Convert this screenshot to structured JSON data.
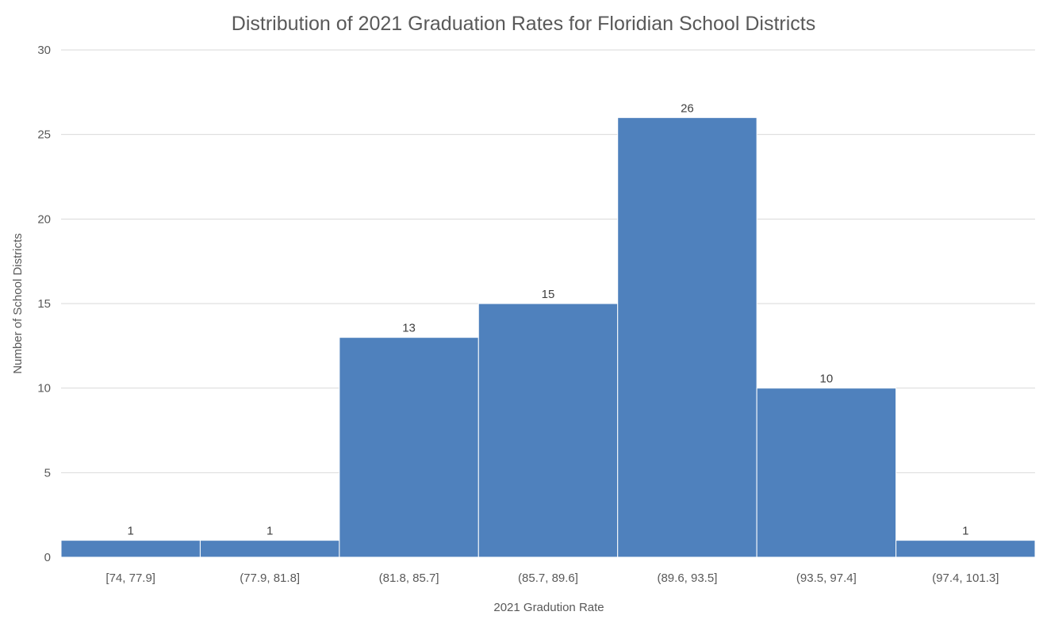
{
  "chart_data": {
    "type": "bar",
    "title": "Distribution of 2021 Graduation Rates for Floridian School Districts",
    "xlabel": "2021 Gradution Rate",
    "ylabel": "Number of School Districts",
    "categories": [
      "[74, 77.9]",
      "(77.9, 81.8]",
      "(81.8, 85.7]",
      "(85.7, 89.6]",
      "(89.6, 93.5]",
      "(93.5, 97.4]",
      "(97.4, 101.3]"
    ],
    "values": [
      1,
      1,
      13,
      15,
      26,
      10,
      1
    ],
    "ylim": [
      0,
      30
    ],
    "yticks": [
      0,
      5,
      10,
      15,
      20,
      25,
      30
    ],
    "grid": true,
    "legend": "none",
    "bar_color": "#4f81bd"
  }
}
